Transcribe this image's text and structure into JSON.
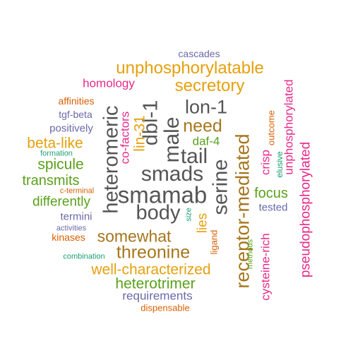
{
  "palette": {
    "grey": "#555555",
    "gold": "#e6a00e",
    "magenta": "#e7298a",
    "green": "#5aa11b",
    "brown": "#a6761d",
    "purple": "#6b68a8",
    "orange": "#d95f02",
    "teal": "#1b9e77"
  },
  "words": [
    {
      "text": "smamab",
      "color": "grey"
    },
    {
      "text": "smads",
      "color": "grey"
    },
    {
      "text": "body",
      "color": "grey"
    },
    {
      "text": "tail",
      "color": "grey"
    },
    {
      "text": "heteromeric",
      "color": "grey"
    },
    {
      "text": "male",
      "color": "grey"
    },
    {
      "text": "dbl-1",
      "color": "grey"
    },
    {
      "text": "lon-1",
      "color": "grey"
    },
    {
      "text": "serine",
      "color": "grey"
    },
    {
      "text": "receptor-mediated",
      "color": "brown"
    },
    {
      "text": "need",
      "color": "brown"
    },
    {
      "text": "threonine",
      "color": "brown"
    },
    {
      "text": "somewhat",
      "color": "brown"
    },
    {
      "text": "unphosphorylatable",
      "color": "gold"
    },
    {
      "text": "secretory",
      "color": "gold"
    },
    {
      "text": "well-characterized",
      "color": "gold"
    },
    {
      "text": "beta-like",
      "color": "gold"
    },
    {
      "text": "lies",
      "color": "gold"
    },
    {
      "text": "lin-31",
      "color": "gold"
    },
    {
      "text": "cascades",
      "color": "purple"
    },
    {
      "text": "homology",
      "color": "magenta"
    },
    {
      "text": "pseudophosphorylated",
      "color": "magenta"
    },
    {
      "text": "unphosphorylated",
      "color": "magenta"
    },
    {
      "text": "cysteine-rich",
      "color": "magenta"
    },
    {
      "text": "crisp",
      "color": "magenta"
    },
    {
      "text": "co-factors",
      "color": "magenta"
    },
    {
      "text": "affinities",
      "color": "orange"
    },
    {
      "text": "tgf-beta",
      "color": "purple"
    },
    {
      "text": "positively",
      "color": "purple"
    },
    {
      "text": "formation",
      "color": "teal"
    },
    {
      "text": "spicule",
      "color": "green"
    },
    {
      "text": "transmits",
      "color": "green"
    },
    {
      "text": "c-terminal",
      "color": "orange"
    },
    {
      "text": "differently",
      "color": "green"
    },
    {
      "text": "termini",
      "color": "purple"
    },
    {
      "text": "activities",
      "color": "purple"
    },
    {
      "text": "kinases",
      "color": "orange"
    },
    {
      "text": "combination",
      "color": "teal"
    },
    {
      "text": "heterotrimer",
      "color": "green"
    },
    {
      "text": "requirements",
      "color": "purple"
    },
    {
      "text": "dispensable",
      "color": "orange"
    },
    {
      "text": "daf-4",
      "color": "green"
    },
    {
      "text": "focus",
      "color": "green"
    },
    {
      "text": "tested",
      "color": "purple"
    },
    {
      "text": "outcome",
      "color": "orange"
    },
    {
      "text": "elusive",
      "color": "teal"
    },
    {
      "text": "size",
      "color": "teal"
    },
    {
      "text": "ligand",
      "color": "orange"
    },
    {
      "text": "methods",
      "color": "green"
    }
  ]
}
